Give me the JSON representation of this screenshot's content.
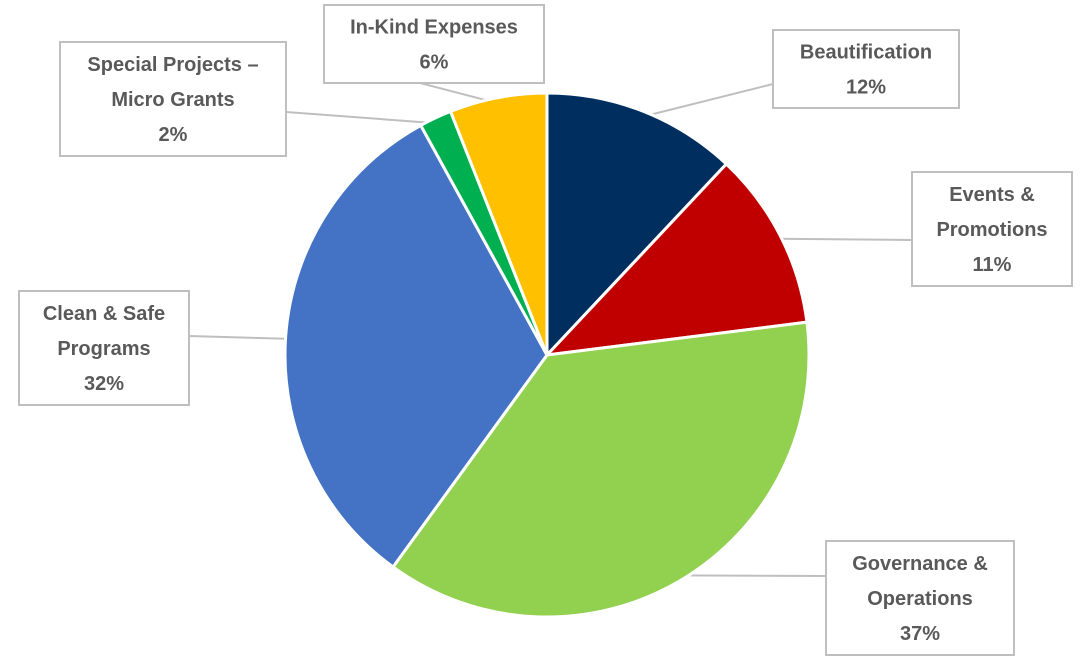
{
  "chart_data": {
    "type": "pie",
    "slices": [
      {
        "name": "Beautification",
        "label_lines": [
          "Beautification",
          "12%"
        ],
        "percent": 12,
        "color": "#002F5F"
      },
      {
        "name": "Events & Promotions",
        "label_lines": [
          "Events &",
          "Promotions",
          "11%"
        ],
        "percent": 11,
        "color": "#C00000"
      },
      {
        "name": "Governance & Operations",
        "label_lines": [
          "Governance &",
          "Operations",
          "37%"
        ],
        "percent": 37,
        "color": "#92D050"
      },
      {
        "name": "Clean & Safe Programs",
        "label_lines": [
          "Clean & Safe",
          "Programs",
          "32%"
        ],
        "percent": 32,
        "color": "#4472C4"
      },
      {
        "name": "Special Projects – Micro Grants",
        "label_lines": [
          "Special Projects –",
          "Micro Grants",
          "2%"
        ],
        "percent": 2,
        "color": "#00B050"
      },
      {
        "name": "In-Kind Expenses",
        "label_lines": [
          "In-Kind Expenses",
          "6%"
        ],
        "percent": 6,
        "color": "#FFC000"
      }
    ]
  }
}
